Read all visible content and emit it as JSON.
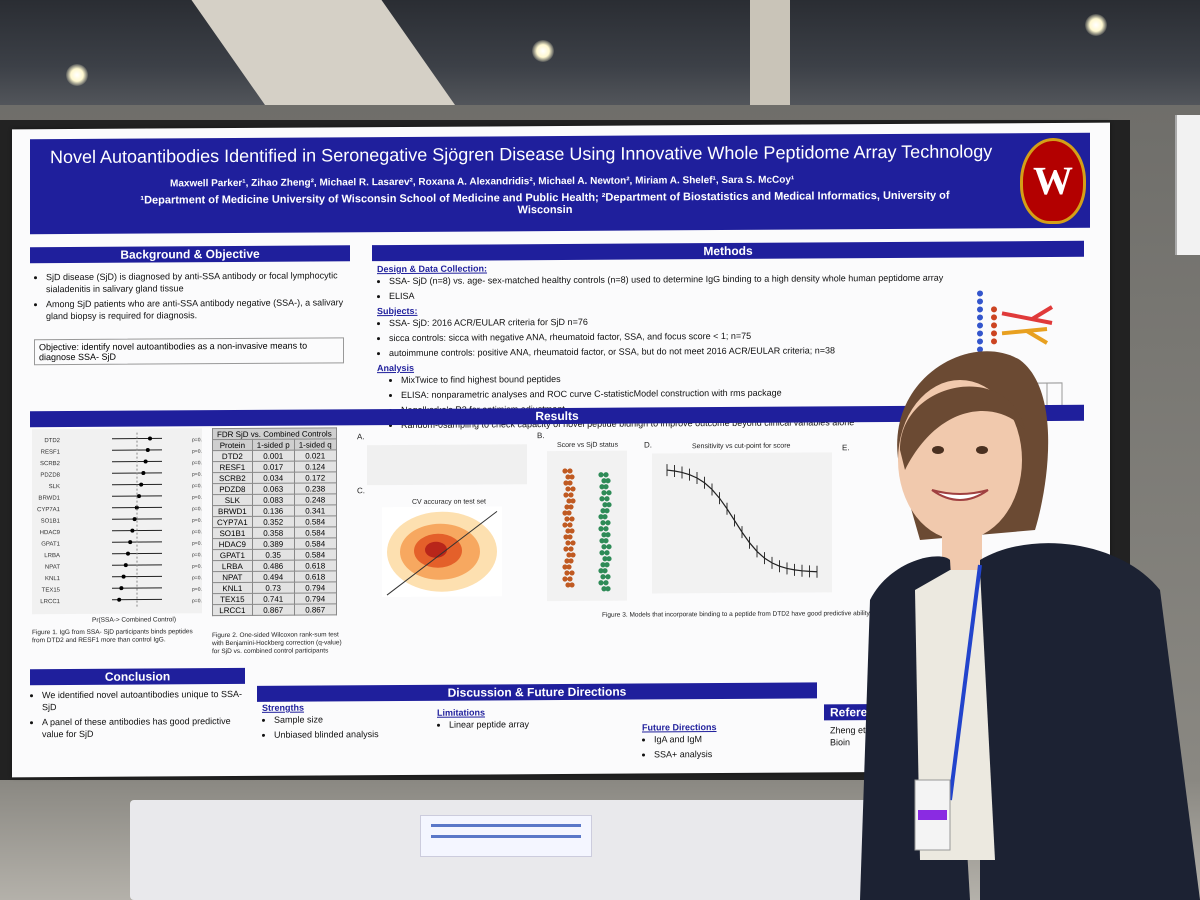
{
  "poster": {
    "title": "Novel Autoantibodies Identified in Seronegative Sjögren Disease Using Innovative Whole Peptidome Array Technology",
    "authors": "Maxwell Parker¹, Zihao Zheng², Michael R. Lasarev², Roxana A. Alexandridis², Michael A. Newton², Miriam A. Shelef¹, Sara S. McCoy¹",
    "affiliations": "¹Department of Medicine University of Wisconsin School of Medicine and Public Health; ²Department of Biostatistics and Medical Informatics, University of Wisconsin",
    "crest_letter": "W",
    "background": {
      "header": "Background & Objective",
      "bullets": [
        "SjD disease (SjD) is diagnosed by anti-SSA antibody or focal lymphocytic sialadenitis in salivary gland tissue",
        "Among SjD patients who are anti-SSA antibody negative (SSA-), a salivary gland biopsy is required for diagnosis."
      ],
      "objective": "Objective: identify novel autoantibodies as a non-invasive means to diagnose SSA- SjD"
    },
    "methods": {
      "header": "Methods",
      "design_heading": "Design & Data Collection:",
      "design": [
        "SSA- SjD (n=8) vs. age- sex-matched healthy controls (n=8) used to determine IgG binding to a high density whole human peptidome array",
        "ELISA"
      ],
      "subjects_heading": "Subjects:",
      "subjects": [
        "SSA- SjD: 2016 ACR/EULAR criteria for SjD n=76",
        "sicca controls: sicca with negative ANA, rheumatoid factor, SSA, and focus score < 1; n=75",
        "autoimmune controls: positive ANA, rheumatoid factor, or SSA, but do not meet 2016 ACR/EULAR criteria; n=38"
      ],
      "analysis_heading": "Analysis",
      "analysis": [
        "MixTwice to find highest bound peptides",
        "ELISA: nonparametric analyses and ROC curve C-statisticModel construction with rms package",
        "Nagelkerke's R2 for optimism adjustment",
        "Random-0sampling to check capacity of novel peptide bidnign to improve outcome beyond clinical variables alone"
      ]
    },
    "results": {
      "header": "Results",
      "table_title": "FDR SjD vs. Combined Controls",
      "table_columns": [
        "Protein",
        "1-sided p",
        "1-sided q"
      ],
      "table_rows": [
        [
          "DTD2",
          "0.001",
          "0.021"
        ],
        [
          "RESF1",
          "0.017",
          "0.124"
        ],
        [
          "SCRB2",
          "0.034",
          "0.172"
        ],
        [
          "PDZD8",
          "0.063",
          "0.238"
        ],
        [
          "SLK",
          "0.083",
          "0.248"
        ],
        [
          "BRWD1",
          "0.136",
          "0.341"
        ],
        [
          "CYP7A1",
          "0.352",
          "0.584"
        ],
        [
          "SO1B1",
          "0.358",
          "0.584"
        ],
        [
          "HDAC9",
          "0.389",
          "0.584"
        ],
        [
          "GPAT1",
          "0.35",
          "0.584"
        ],
        [
          "LRBA",
          "0.486",
          "0.618"
        ],
        [
          "NPAT",
          "0.494",
          "0.618"
        ],
        [
          "KNL1",
          "0.73",
          "0.794"
        ],
        [
          "TEX15",
          "0.741",
          "0.794"
        ],
        [
          "LRCC1",
          "0.867",
          "0.867"
        ]
      ],
      "forest_xlabel": "Pr(SSA-> Combined Control)",
      "fig1_caption": "Figure 1. IgG from SSA- SjD participants binds peptides from DTD2 and RESF1 more than control IgG.",
      "fig2_caption": "Figure 2. One-sided Wilcoxon rank-sum test with Benjamini-Hockberg correction (q-value) for SjD vs. combined control participants",
      "plot_c_title": "CV accuracy on test set",
      "plot_b_title": "Score vs SjD status",
      "plot_d_title": "Sensitivity vs cut-point for score",
      "panel_labels": [
        "A.",
        "B.",
        "C.",
        "D.",
        "E."
      ],
      "fig3_caption": "Figure 3. Models that incorporate binding to a peptide from DTD2 have good predictive ability for SjD."
    },
    "conclusion": {
      "header": "Conclusion",
      "bullets": [
        "We identified novel autoantibodies unique to SSA- SjD",
        "A panel of these antibodies has good predictive value for SjD"
      ]
    },
    "discussion": {
      "header": "Discussion & Future Directions",
      "strengths_heading": "Strengths",
      "strengths": [
        "Sample size",
        "Unbiased blinded analysis"
      ],
      "limitations_heading": "Limitations",
      "limitations": [
        "Linear peptide array"
      ],
      "future_heading": "Future Directions",
      "future": [
        "IgA and IgM",
        "SSA+ analysis"
      ]
    },
    "references": {
      "header": "Reference",
      "text": "Zheng et al. Bioin"
    }
  },
  "colors": {
    "poster_blue": "#1f1f9c",
    "crest_red": "#b30000",
    "crest_gold": "#d4a017"
  }
}
